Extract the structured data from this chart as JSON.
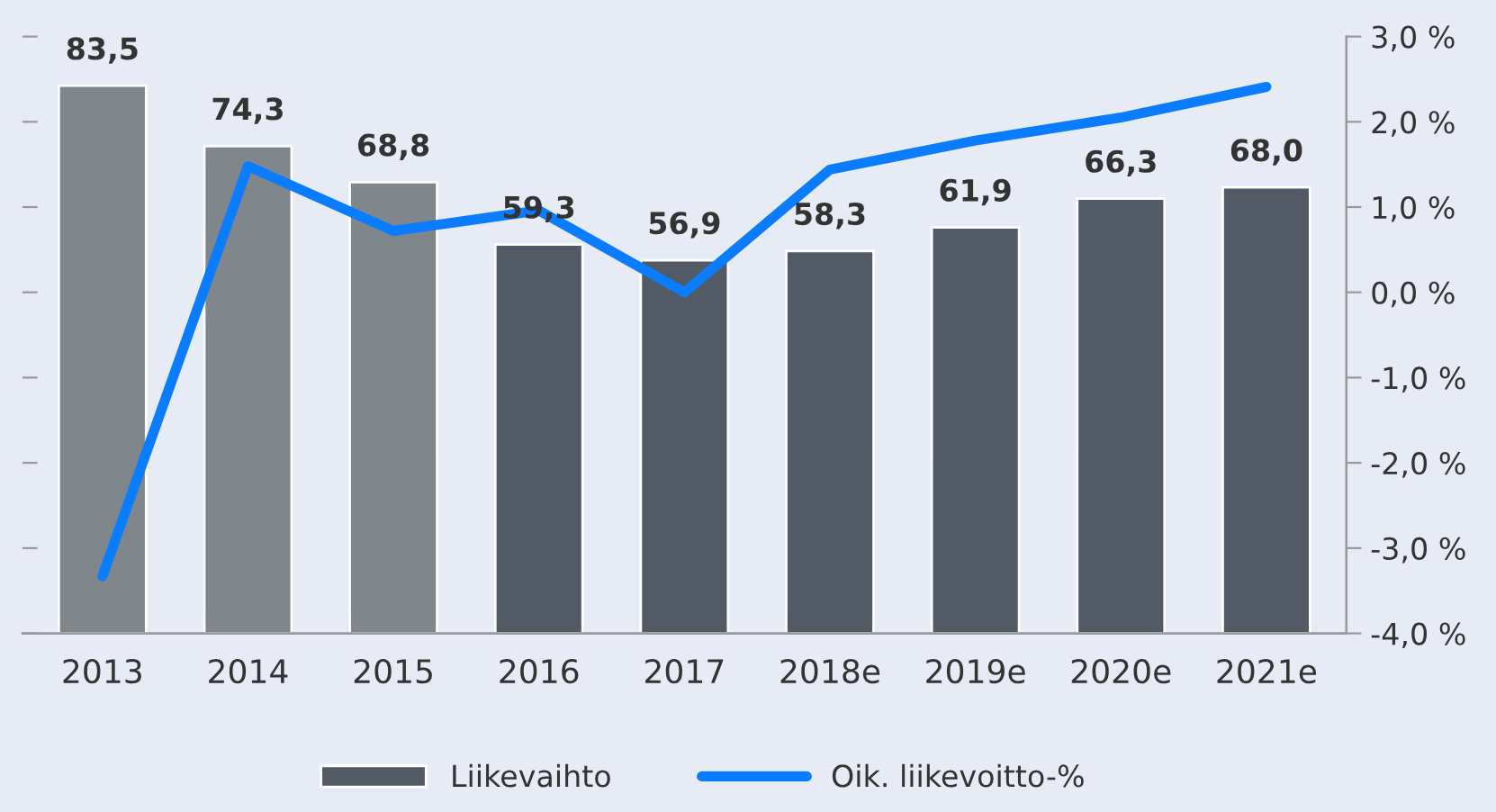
{
  "chart_data": {
    "type": "bar",
    "categories": [
      "2013",
      "2014",
      "2015",
      "2016",
      "2017",
      "2018e",
      "2019e",
      "2020e",
      "2021e"
    ],
    "series": [
      {
        "name": "Liikevaihto",
        "color": "#525a66",
        "colors": [
          "#7f878c",
          "#7f878c",
          "#7f878c",
          "#525a66",
          "#525a66",
          "#525a66",
          "#525a66",
          "#525a66",
          "#525a66"
        ],
        "values": [
          83.5,
          74.3,
          68.8,
          59.3,
          56.9,
          58.3,
          61.9,
          66.3,
          68.0
        ],
        "value_labels": [
          "83,5",
          "74,3",
          "68,8",
          "59,3",
          "56,9",
          "58,3",
          "61,9",
          "66,3",
          "68,0"
        ]
      },
      {
        "name": "Oik. liikevoitto-%",
        "type": "line",
        "axis": "y2",
        "color": "#0a7cff",
        "values": [
          -3.33,
          1.48,
          0.72,
          0.96,
          0.0,
          1.44,
          1.78,
          2.05,
          2.41
        ]
      }
    ],
    "ylim": [
      0,
      91
    ],
    "yticks": [
      {
        "value": 0,
        "label": null
      },
      {
        "value": 13,
        "label": null
      },
      {
        "value": 26,
        "label": null
      },
      {
        "value": 39,
        "label": null
      },
      {
        "value": 52,
        "label": null
      },
      {
        "value": 65,
        "label": null
      },
      {
        "value": 78,
        "label": null
      },
      {
        "value": 91,
        "label": null
      }
    ],
    "y2lim": [
      -4,
      3
    ],
    "y2ticks": [
      {
        "value": -4,
        "label": "-4,0 %"
      },
      {
        "value": -3,
        "label": "-3,0 %"
      },
      {
        "value": -2,
        "label": "-2,0 %"
      },
      {
        "value": -1,
        "label": "-1,0 %"
      },
      {
        "value": 0,
        "label": "0,0 %"
      },
      {
        "value": 1,
        "label": "1,0 %"
      },
      {
        "value": 2,
        "label": "2,0 %"
      },
      {
        "value": 3,
        "label": "3,0 %"
      }
    ],
    "legend": "bottom",
    "grid": false
  }
}
